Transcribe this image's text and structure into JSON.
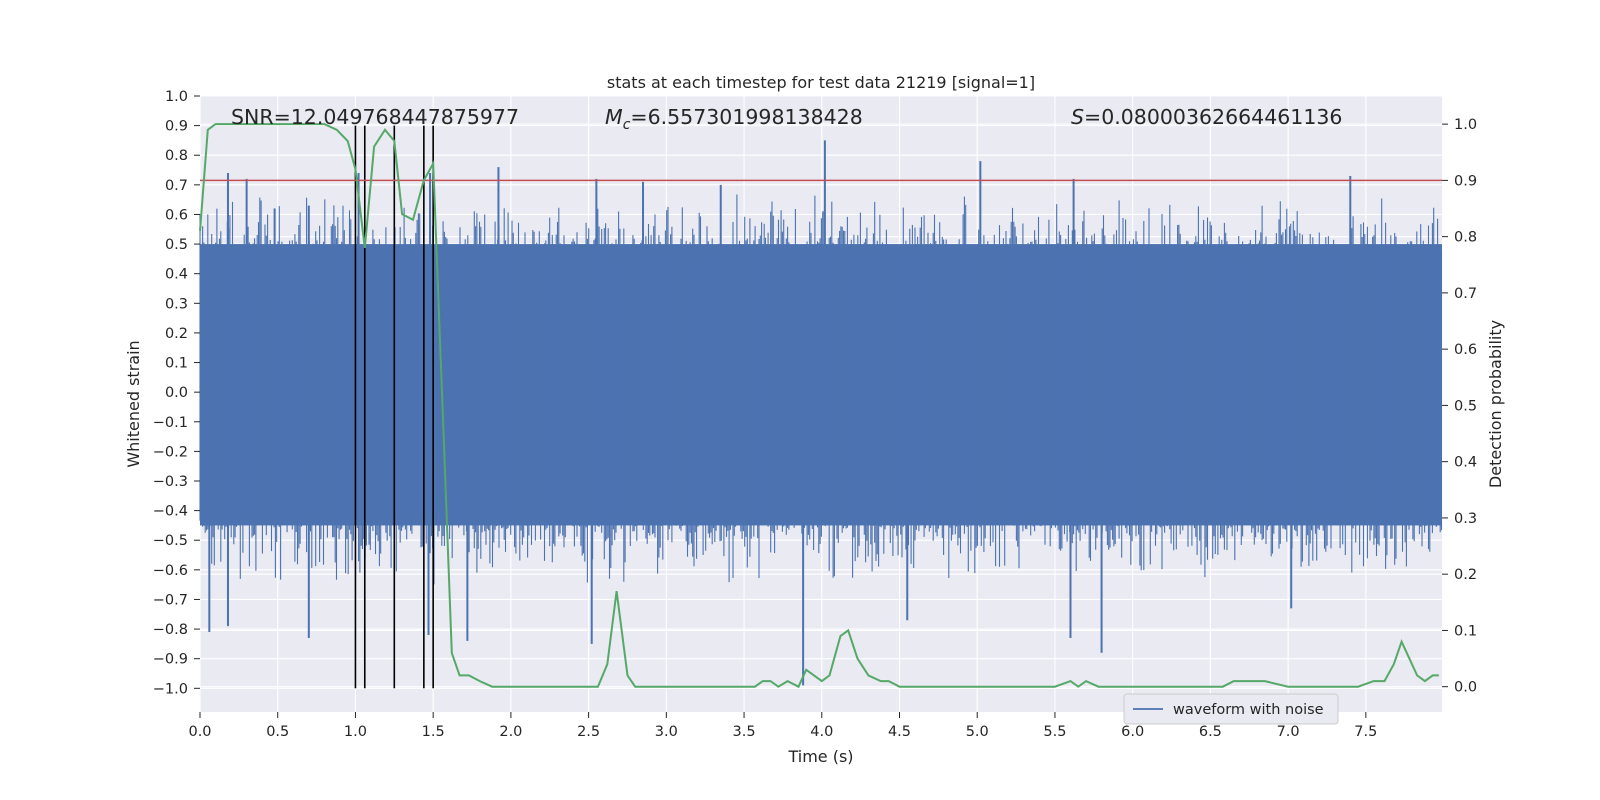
{
  "chart_data": {
    "type": "line",
    "title": "stats at each timestep for test data 21219 [signal=1]",
    "xlabel": "Time (s)",
    "ylabel": "Whitened strain",
    "y2label": "Detection probability",
    "xlim": [
      0,
      7.99
    ],
    "ylim": [
      -1.08,
      1.0
    ],
    "y2lim": [
      -0.045,
      1.05
    ],
    "x_ticks": [
      0.0,
      0.5,
      1.0,
      1.5,
      2.0,
      2.5,
      3.0,
      3.5,
      4.0,
      4.5,
      5.0,
      5.5,
      6.0,
      6.5,
      7.0,
      7.5
    ],
    "x_tick_labels": [
      "0.0",
      "0.5",
      "1.0",
      "1.5",
      "2.0",
      "2.5",
      "3.0",
      "3.5",
      "4.0",
      "4.5",
      "5.0",
      "5.5",
      "6.0",
      "6.5",
      "7.0",
      "7.5"
    ],
    "y_ticks": [
      1.0,
      0.9,
      0.8,
      0.7,
      0.6,
      0.5,
      0.4,
      0.3,
      0.2,
      0.1,
      0.0,
      -0.1,
      -0.2,
      -0.3,
      -0.4,
      -0.5,
      -0.6,
      -0.7,
      -0.8,
      -0.9,
      -1.0
    ],
    "y_tick_labels": [
      "1.0",
      "0.9",
      "0.8",
      "0.7",
      "0.6",
      "0.5",
      "0.4",
      "0.3",
      "0.2",
      "0.1",
      "0.0",
      "−0.1",
      "−0.2",
      "−0.3",
      "−0.4",
      "−0.5",
      "−0.6",
      "−0.7",
      "−0.8",
      "−0.9",
      "−1.0"
    ],
    "y2_ticks": [
      1.0,
      0.9,
      0.8,
      0.7,
      0.6,
      0.5,
      0.4,
      0.3,
      0.2,
      0.1,
      0.0
    ],
    "y2_tick_labels": [
      "1.0",
      "0.9",
      "0.8",
      "0.7",
      "0.6",
      "0.5",
      "0.4",
      "0.3",
      "0.2",
      "0.1",
      "0.0"
    ],
    "grid": true,
    "legend": {
      "placement": "lower-right",
      "entries": [
        "waveform with noise"
      ]
    },
    "annotations": {
      "snr": "SNR=12.049768447875977",
      "mc_symbol": "M",
      "mc_sub": "c",
      "mc_value": "=6.557301998138428",
      "s_symbol": "S",
      "s_value": "=0.08000362664461136"
    },
    "threshold": {
      "axis": "right",
      "value": 0.9,
      "color": "#c44e52"
    },
    "vertical_lines": {
      "color": "#000000",
      "x": [
        1.0,
        1.06,
        1.25,
        1.44,
        1.5
      ],
      "y_range": [
        -1.0,
        0.9
      ]
    },
    "series": [
      {
        "name": "waveform with noise",
        "axis": "left",
        "color": "#4c72b0",
        "x_range": [
          0.0,
          7.99
        ],
        "core_band": [
          -0.45,
          0.5
        ],
        "peak_spikes": [
          {
            "x": 0.18,
            "y": 0.74
          },
          {
            "x": 0.3,
            "y": 0.72
          },
          {
            "x": 0.48,
            "y": 0.62
          },
          {
            "x": 0.7,
            "y": 0.63
          },
          {
            "x": 1.02,
            "y": 0.74
          },
          {
            "x": 1.48,
            "y": 0.74
          },
          {
            "x": 1.92,
            "y": 0.76
          },
          {
            "x": 2.55,
            "y": 0.72
          },
          {
            "x": 2.85,
            "y": 0.71
          },
          {
            "x": 3.35,
            "y": 0.7
          },
          {
            "x": 4.02,
            "y": 0.85
          },
          {
            "x": 5.02,
            "y": 0.78
          },
          {
            "x": 5.62,
            "y": 0.72
          },
          {
            "x": 7.4,
            "y": 0.73
          }
        ],
        "trough_spikes": [
          {
            "x": 0.06,
            "y": -0.81
          },
          {
            "x": 0.18,
            "y": -0.79
          },
          {
            "x": 0.7,
            "y": -0.83
          },
          {
            "x": 1.47,
            "y": -0.82
          },
          {
            "x": 1.72,
            "y": -0.84
          },
          {
            "x": 2.52,
            "y": -0.85
          },
          {
            "x": 3.88,
            "y": -0.99
          },
          {
            "x": 4.55,
            "y": -0.77
          },
          {
            "x": 5.6,
            "y": -0.83
          },
          {
            "x": 5.8,
            "y": -0.88
          },
          {
            "x": 7.02,
            "y": -0.73
          }
        ]
      },
      {
        "axis": "right",
        "color": "#55a868",
        "x": [
          0.0,
          0.05,
          0.1,
          0.15,
          0.2,
          0.3,
          0.4,
          0.5,
          0.6,
          0.7,
          0.8,
          0.88,
          0.95,
          1.0,
          1.06,
          1.12,
          1.19,
          1.25,
          1.3,
          1.37,
          1.44,
          1.5,
          1.56,
          1.62,
          1.67,
          1.73,
          1.8,
          1.88,
          1.95,
          2.05,
          2.2,
          2.3,
          2.4,
          2.45,
          2.5,
          2.56,
          2.62,
          2.68,
          2.75,
          2.8,
          2.9,
          3.0,
          3.1,
          3.2,
          3.3,
          3.4,
          3.5,
          3.57,
          3.62,
          3.67,
          3.72,
          3.78,
          3.85,
          3.9,
          3.95,
          4.0,
          4.05,
          4.12,
          4.17,
          4.23,
          4.3,
          4.38,
          4.43,
          4.5,
          4.6,
          4.7,
          4.8,
          5.0,
          5.3,
          5.5,
          5.6,
          5.65,
          5.7,
          5.78,
          5.85,
          5.95,
          6.2,
          6.4,
          6.5,
          6.58,
          6.65,
          6.75,
          6.85,
          7.0,
          7.2,
          7.35,
          7.45,
          7.55,
          7.62,
          7.68,
          7.73,
          7.78,
          7.83,
          7.88,
          7.93,
          7.97
        ],
        "y": [
          0.81,
          0.99,
          1.0,
          1.0,
          1.0,
          1.0,
          1.0,
          1.0,
          1.0,
          1.0,
          1.0,
          0.99,
          0.97,
          0.92,
          0.78,
          0.96,
          0.99,
          0.97,
          0.84,
          0.83,
          0.9,
          0.93,
          0.5,
          0.06,
          0.02,
          0.02,
          0.01,
          0.0,
          0.0,
          0.0,
          0.0,
          0.0,
          0.0,
          0.0,
          0.0,
          0.0,
          0.04,
          0.17,
          0.02,
          0.0,
          0.0,
          0.0,
          0.0,
          0.0,
          0.0,
          0.0,
          0.0,
          0.0,
          0.01,
          0.01,
          0.0,
          0.01,
          0.0,
          0.03,
          0.02,
          0.01,
          0.02,
          0.09,
          0.1,
          0.05,
          0.02,
          0.01,
          0.01,
          0.0,
          0.0,
          0.0,
          0.0,
          0.0,
          0.0,
          0.0,
          0.01,
          0.0,
          0.01,
          0.0,
          0.0,
          0.0,
          0.0,
          0.0,
          0.0,
          0.0,
          0.01,
          0.01,
          0.01,
          0.0,
          0.0,
          0.0,
          0.0,
          0.01,
          0.01,
          0.04,
          0.08,
          0.05,
          0.02,
          0.01,
          0.02,
          0.02
        ]
      }
    ]
  }
}
